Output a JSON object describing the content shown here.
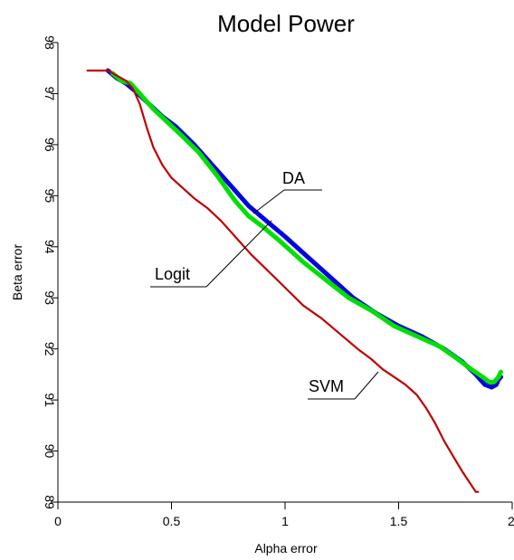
{
  "chart_data": {
    "type": "line",
    "title": "Model Power",
    "xlabel": "Alpha error",
    "ylabel": "Beta error",
    "xlim": [
      0,
      2
    ],
    "ylim": [
      89,
      98
    ],
    "xticks": [
      0,
      0.5,
      1,
      1.5,
      2
    ],
    "xtick_labels": [
      "0",
      "0.5",
      "1",
      "1.5",
      "2"
    ],
    "yticks": [
      89,
      90,
      91,
      92,
      93,
      94,
      95,
      96,
      97,
      98
    ],
    "ytick_labels": [
      "89",
      "90",
      "91",
      "92",
      "93",
      "94",
      "95",
      "96",
      "97",
      "98"
    ],
    "grid": false,
    "series": [
      {
        "name": "SVM",
        "color": "#c00000",
        "x": [
          0.13,
          0.18,
          0.22,
          0.26,
          0.3,
          0.33,
          0.36,
          0.39,
          0.42,
          0.46,
          0.5,
          0.55,
          0.6,
          0.66,
          0.72,
          0.78,
          0.85,
          0.92,
          1.0,
          1.08,
          1.16,
          1.24,
          1.32,
          1.38,
          1.43,
          1.48,
          1.53,
          1.58,
          1.62,
          1.66,
          1.7,
          1.74,
          1.78,
          1.81,
          1.84,
          1.85
        ],
        "y": [
          97.45,
          97.45,
          97.45,
          97.35,
          97.25,
          97.1,
          96.8,
          96.35,
          95.95,
          95.6,
          95.35,
          95.15,
          94.95,
          94.75,
          94.5,
          94.2,
          93.85,
          93.55,
          93.2,
          92.85,
          92.6,
          92.3,
          92.0,
          91.8,
          91.6,
          91.45,
          91.3,
          91.1,
          90.85,
          90.55,
          90.2,
          89.9,
          89.6,
          89.4,
          89.2,
          89.2
        ]
      },
      {
        "name": "DA",
        "color": "#0000e0",
        "x": [
          0.22,
          0.26,
          0.3,
          0.34,
          0.4,
          0.46,
          0.52,
          0.6,
          0.68,
          0.76,
          0.84,
          0.92,
          1.0,
          1.1,
          1.2,
          1.3,
          1.4,
          1.5,
          1.6,
          1.7,
          1.78,
          1.84,
          1.88,
          1.91,
          1.93,
          1.94,
          1.95
        ],
        "y": [
          97.45,
          97.3,
          97.2,
          97.05,
          96.8,
          96.55,
          96.35,
          96.0,
          95.6,
          95.2,
          94.8,
          94.5,
          94.2,
          93.8,
          93.4,
          93.0,
          92.7,
          92.45,
          92.25,
          92.0,
          91.75,
          91.5,
          91.3,
          91.25,
          91.3,
          91.4,
          91.45
        ]
      },
      {
        "name": "Logit",
        "color": "#00e000",
        "x": [
          0.24,
          0.28,
          0.32,
          0.36,
          0.42,
          0.48,
          0.54,
          0.62,
          0.7,
          0.78,
          0.84,
          0.9,
          0.98,
          1.08,
          1.18,
          1.28,
          1.38,
          1.48,
          1.58,
          1.68,
          1.76,
          1.82,
          1.87,
          1.9,
          1.92,
          1.94,
          1.95
        ],
        "y": [
          97.4,
          97.25,
          97.2,
          97.0,
          96.7,
          96.45,
          96.2,
          95.85,
          95.4,
          94.9,
          94.6,
          94.4,
          94.1,
          93.7,
          93.35,
          93.0,
          92.75,
          92.45,
          92.25,
          92.05,
          91.8,
          91.6,
          91.45,
          91.35,
          91.35,
          91.45,
          91.55
        ]
      }
    ],
    "annotations": [
      {
        "text": "DA",
        "points_to": [
          0.86,
          94.75
        ]
      },
      {
        "text": "Logit",
        "points_to": [
          0.86,
          94.75
        ]
      },
      {
        "text": "SVM",
        "points_to": [
          1.45,
          91.6
        ]
      }
    ]
  }
}
